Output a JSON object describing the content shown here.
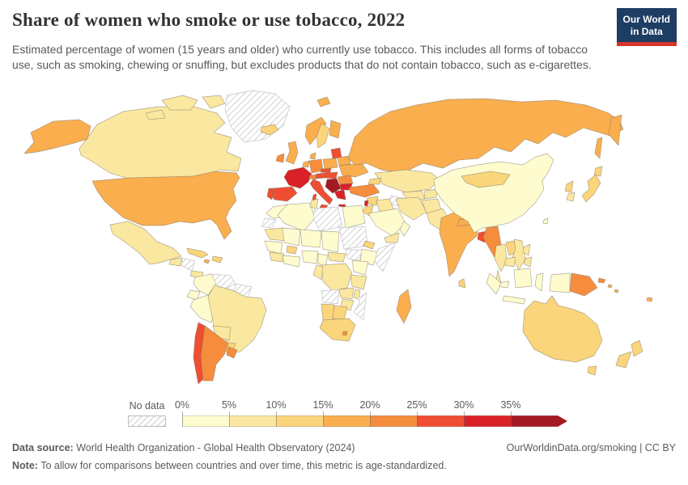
{
  "header": {
    "title": "Share of women who smoke or use tobacco, 2022",
    "subtitle": "Estimated percentage of women (15 years and older) who currently use tobacco. This includes all forms of tobacco use, such as smoking, chewing or snuffing, but excludes products that do not contain tobacco, such as e-cigarettes.",
    "logo_line1": "Our World",
    "logo_line2": "in Data",
    "logo_bg": "#1d3d63",
    "logo_accent": "#d7352a"
  },
  "legend": {
    "no_data_label": "No data",
    "tick_labels": [
      "0%",
      "5%",
      "10%",
      "15%",
      "20%",
      "25%",
      "30%",
      "35%"
    ]
  },
  "footer": {
    "source_prefix": "Data source:",
    "source_text": " World Health Organization - Global Health Observatory (2024)",
    "rights": "OurWorldinData.org/smoking | CC BY",
    "note_prefix": "Note:",
    "note_text": " To allow for comparisons between countries and over time, this metric is age-standardized."
  },
  "chart_data": {
    "type": "choropleth",
    "title": "Share of women who smoke or use tobacco, 2022",
    "unit": "% of women aged 15+ using tobacco",
    "legend_position": "bottom",
    "no_data_key": "ND",
    "bins": [
      {
        "range": "0-5%",
        "color": "#FEFCCE"
      },
      {
        "range": "5-10%",
        "color": "#FBE8A0"
      },
      {
        "range": "10-15%",
        "color": "#FBD57B"
      },
      {
        "range": "15-20%",
        "color": "#FAAE4E"
      },
      {
        "range": "20-25%",
        "color": "#F68D3D"
      },
      {
        "range": "25-30%",
        "color": "#EF4E33"
      },
      {
        "range": "30-35%",
        "color": "#DA2127"
      },
      {
        "range": "35%+",
        "color": "#A31A23"
      }
    ],
    "countries": {
      "canada": 1,
      "greenland": "ND",
      "usa": 3,
      "mexico": 1,
      "guatemala": 1,
      "honduras": "ND",
      "panama": 1,
      "cuba": 2,
      "hispaniola": 2,
      "jamaica": 3,
      "colombia": 0,
      "venezuela": "ND",
      "guyanas": "ND",
      "ecuador": 0,
      "peru": 0,
      "brazil": 1,
      "bolivia": 1,
      "paraguay": 2,
      "chile": 5,
      "argentina": 4,
      "uruguay": 4,
      "iceland": 2,
      "svalbard": 3,
      "uk": 3,
      "ireland": 4,
      "norway": 3,
      "sweden": 2,
      "finland": 3,
      "denmark": 3,
      "germany": 4,
      "benelux": 3,
      "france": 6,
      "spain": 5,
      "portugal": 5,
      "switzerland": 4,
      "austria": 5,
      "czechia": 5,
      "poland": 3,
      "baltics": 5,
      "belarus": 3,
      "ukraine": 3,
      "hungary": 5,
      "romania": 4,
      "balkans": 7,
      "bulgaria": 6,
      "greece": 6,
      "italy": 5,
      "russia": 3,
      "kazakhstan": 1,
      "uzbekistan": 1,
      "turkmenistan": "ND",
      "kyrgyzstan": 1,
      "caucasus": 2,
      "turkey": 4,
      "cyprus": 2,
      "syria": 2,
      "lebanon": 6,
      "jordan": 2,
      "iraq": 1,
      "saudi_arabia": 0,
      "yemen": 1,
      "oman": 0,
      "iran": 1,
      "afghanistan": 1,
      "pakistan": 1,
      "india": 3,
      "nepal": 3,
      "bhutan": 0,
      "bangladesh": 5,
      "sri_lanka": 2,
      "myanmar": 4,
      "thailand": 1,
      "laos": 2,
      "vietnam": 1,
      "cambodia": 1,
      "malaysia": 0,
      "china": 0,
      "mongolia": 2,
      "north_korea": 2,
      "south_korea": 1,
      "japan": 2,
      "taiwan": 0,
      "philippines": 1,
      "indonesia": 0,
      "png": 4,
      "solomon_islands": 3,
      "fiji": 3,
      "australia": 2,
      "new_zealand": 2,
      "morocco": 0,
      "western_sahara": "ND",
      "algeria": 0,
      "tunisia": 1,
      "libya": "ND",
      "egypt": 0,
      "mauritania": 1,
      "mali": 0,
      "niger": 0,
      "chad": 0,
      "sudan": "ND",
      "eritrea": 2,
      "ethiopia": 0,
      "somalia": "ND",
      "senegal": 0,
      "guinea": 1,
      "burkina_faso": 2,
      "ghana": 0,
      "nigeria": 0,
      "cameroon": 0,
      "central_african_republic": 1,
      "south_sudan": "ND",
      "kenya": 0,
      "drc": 1,
      "congo": 1,
      "tanzania": 1,
      "angola": "ND",
      "zambia": 1,
      "malawi": 1,
      "mozambique": "ND",
      "zimbabwe": 1,
      "namibia": 2,
      "botswana": 2,
      "south_africa": 2,
      "lesotho": 4,
      "madagascar": 3
    }
  }
}
